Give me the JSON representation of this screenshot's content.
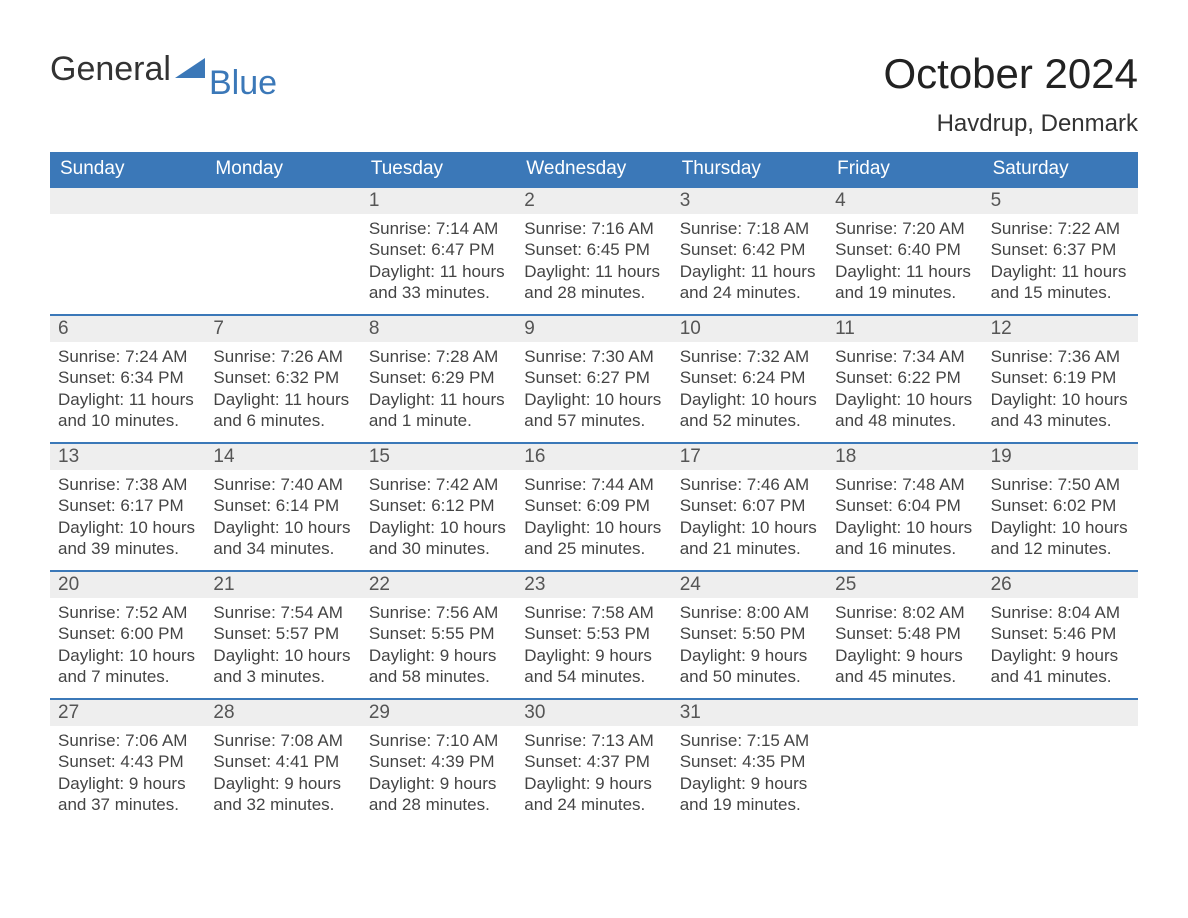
{
  "branding": {
    "logo_word1": "General",
    "logo_word2": "Blue",
    "logo_color_gray": "#333333",
    "logo_color_blue": "#3b78b8"
  },
  "header": {
    "month_title": "October 2024",
    "location": "Havdrup, Denmark"
  },
  "styling": {
    "header_bg": "#3b78b8",
    "header_text_color": "#ffffff",
    "daynum_bg": "#eeeeee",
    "daynum_border_top": "#3b78b8",
    "body_text_color": "#444444",
    "page_bg": "#ffffff",
    "title_fontsize_pt": 32,
    "location_fontsize_pt": 18,
    "header_fontsize_pt": 14,
    "body_fontsize_pt": 13
  },
  "weekday_labels": [
    "Sunday",
    "Monday",
    "Tuesday",
    "Wednesday",
    "Thursday",
    "Friday",
    "Saturday"
  ],
  "field_labels": {
    "sunrise": "Sunrise:",
    "sunset": "Sunset:",
    "daylight": "Daylight:"
  },
  "weeks": [
    [
      {
        "day": "",
        "sunrise": "",
        "sunset": "",
        "daylight": "",
        "empty": true
      },
      {
        "day": "",
        "sunrise": "",
        "sunset": "",
        "daylight": "",
        "empty": true
      },
      {
        "day": "1",
        "sunrise": "7:14 AM",
        "sunset": "6:47 PM",
        "daylight": "11 hours and 33 minutes."
      },
      {
        "day": "2",
        "sunrise": "7:16 AM",
        "sunset": "6:45 PM",
        "daylight": "11 hours and 28 minutes."
      },
      {
        "day": "3",
        "sunrise": "7:18 AM",
        "sunset": "6:42 PM",
        "daylight": "11 hours and 24 minutes."
      },
      {
        "day": "4",
        "sunrise": "7:20 AM",
        "sunset": "6:40 PM",
        "daylight": "11 hours and 19 minutes."
      },
      {
        "day": "5",
        "sunrise": "7:22 AM",
        "sunset": "6:37 PM",
        "daylight": "11 hours and 15 minutes."
      }
    ],
    [
      {
        "day": "6",
        "sunrise": "7:24 AM",
        "sunset": "6:34 PM",
        "daylight": "11 hours and 10 minutes."
      },
      {
        "day": "7",
        "sunrise": "7:26 AM",
        "sunset": "6:32 PM",
        "daylight": "11 hours and 6 minutes."
      },
      {
        "day": "8",
        "sunrise": "7:28 AM",
        "sunset": "6:29 PM",
        "daylight": "11 hours and 1 minute."
      },
      {
        "day": "9",
        "sunrise": "7:30 AM",
        "sunset": "6:27 PM",
        "daylight": "10 hours and 57 minutes."
      },
      {
        "day": "10",
        "sunrise": "7:32 AM",
        "sunset": "6:24 PM",
        "daylight": "10 hours and 52 minutes."
      },
      {
        "day": "11",
        "sunrise": "7:34 AM",
        "sunset": "6:22 PM",
        "daylight": "10 hours and 48 minutes."
      },
      {
        "day": "12",
        "sunrise": "7:36 AM",
        "sunset": "6:19 PM",
        "daylight": "10 hours and 43 minutes."
      }
    ],
    [
      {
        "day": "13",
        "sunrise": "7:38 AM",
        "sunset": "6:17 PM",
        "daylight": "10 hours and 39 minutes."
      },
      {
        "day": "14",
        "sunrise": "7:40 AM",
        "sunset": "6:14 PM",
        "daylight": "10 hours and 34 minutes."
      },
      {
        "day": "15",
        "sunrise": "7:42 AM",
        "sunset": "6:12 PM",
        "daylight": "10 hours and 30 minutes."
      },
      {
        "day": "16",
        "sunrise": "7:44 AM",
        "sunset": "6:09 PM",
        "daylight": "10 hours and 25 minutes."
      },
      {
        "day": "17",
        "sunrise": "7:46 AM",
        "sunset": "6:07 PM",
        "daylight": "10 hours and 21 minutes."
      },
      {
        "day": "18",
        "sunrise": "7:48 AM",
        "sunset": "6:04 PM",
        "daylight": "10 hours and 16 minutes."
      },
      {
        "day": "19",
        "sunrise": "7:50 AM",
        "sunset": "6:02 PM",
        "daylight": "10 hours and 12 minutes."
      }
    ],
    [
      {
        "day": "20",
        "sunrise": "7:52 AM",
        "sunset": "6:00 PM",
        "daylight": "10 hours and 7 minutes."
      },
      {
        "day": "21",
        "sunrise": "7:54 AM",
        "sunset": "5:57 PM",
        "daylight": "10 hours and 3 minutes."
      },
      {
        "day": "22",
        "sunrise": "7:56 AM",
        "sunset": "5:55 PM",
        "daylight": "9 hours and 58 minutes."
      },
      {
        "day": "23",
        "sunrise": "7:58 AM",
        "sunset": "5:53 PM",
        "daylight": "9 hours and 54 minutes."
      },
      {
        "day": "24",
        "sunrise": "8:00 AM",
        "sunset": "5:50 PM",
        "daylight": "9 hours and 50 minutes."
      },
      {
        "day": "25",
        "sunrise": "8:02 AM",
        "sunset": "5:48 PM",
        "daylight": "9 hours and 45 minutes."
      },
      {
        "day": "26",
        "sunrise": "8:04 AM",
        "sunset": "5:46 PM",
        "daylight": "9 hours and 41 minutes."
      }
    ],
    [
      {
        "day": "27",
        "sunrise": "7:06 AM",
        "sunset": "4:43 PM",
        "daylight": "9 hours and 37 minutes."
      },
      {
        "day": "28",
        "sunrise": "7:08 AM",
        "sunset": "4:41 PM",
        "daylight": "9 hours and 32 minutes."
      },
      {
        "day": "29",
        "sunrise": "7:10 AM",
        "sunset": "4:39 PM",
        "daylight": "9 hours and 28 minutes."
      },
      {
        "day": "30",
        "sunrise": "7:13 AM",
        "sunset": "4:37 PM",
        "daylight": "9 hours and 24 minutes."
      },
      {
        "day": "31",
        "sunrise": "7:15 AM",
        "sunset": "4:35 PM",
        "daylight": "9 hours and 19 minutes."
      },
      {
        "day": "",
        "sunrise": "",
        "sunset": "",
        "daylight": "",
        "empty": true
      },
      {
        "day": "",
        "sunrise": "",
        "sunset": "",
        "daylight": "",
        "empty": true
      }
    ]
  ]
}
